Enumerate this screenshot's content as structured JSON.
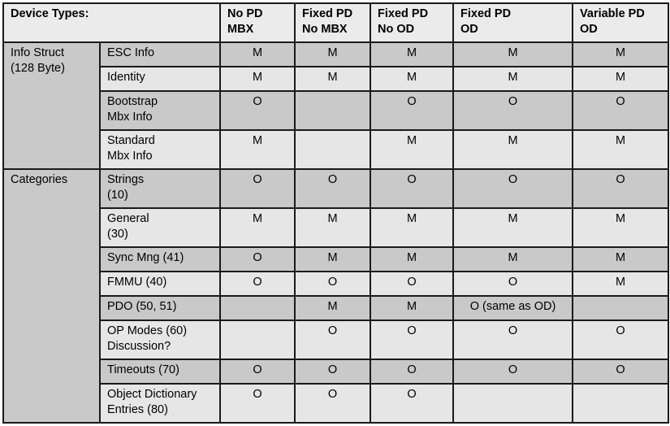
{
  "header": {
    "device_types": "Device Types:",
    "columns": [
      [
        "No PD",
        "MBX"
      ],
      [
        "Fixed PD",
        "No MBX"
      ],
      [
        "Fixed PD",
        "No OD"
      ],
      [
        "Fixed PD",
        "OD"
      ],
      [
        "Variable PD",
        "OD"
      ]
    ]
  },
  "groups": [
    {
      "label": [
        "Info Struct",
        "(128 Byte)"
      ]
    },
    {
      "label": [
        "Categories"
      ]
    }
  ],
  "rows": [
    {
      "name": [
        "ESC Info"
      ],
      "values": [
        "M",
        "M",
        "M",
        "M",
        "M"
      ]
    },
    {
      "name": [
        "Identity"
      ],
      "values": [
        "M",
        "M",
        "M",
        "M",
        "M"
      ]
    },
    {
      "name": [
        "Bootstrap",
        "Mbx Info"
      ],
      "values": [
        "O",
        "",
        "O",
        "O",
        "O"
      ]
    },
    {
      "name": [
        "Standard",
        "Mbx Info"
      ],
      "values": [
        "M",
        "",
        "M",
        "M",
        "M"
      ]
    },
    {
      "name": [
        "Strings",
        "(10)"
      ],
      "values": [
        "O",
        "O",
        "O",
        "O",
        "O"
      ]
    },
    {
      "name": [
        "General",
        "(30)"
      ],
      "values": [
        "M",
        "M",
        "M",
        "M",
        "M"
      ]
    },
    {
      "name": [
        "Sync Mng (41)"
      ],
      "values": [
        "O",
        "M",
        "M",
        "M",
        "M"
      ]
    },
    {
      "name": [
        "FMMU (40)"
      ],
      "values": [
        "O",
        "O",
        "O",
        "O",
        "M"
      ]
    },
    {
      "name": [
        "PDO (50, 51)"
      ],
      "values": [
        "",
        "M",
        "M",
        "O (same as OD)",
        ""
      ]
    },
    {
      "name": [
        "OP Modes (60)",
        "Discussion?"
      ],
      "values": [
        "",
        "O",
        "O",
        "O",
        "O"
      ]
    },
    {
      "name": [
        "Timeouts (70)"
      ],
      "values": [
        "O",
        "O",
        "O",
        "O",
        "O"
      ]
    },
    {
      "name": [
        "Object Dictionary",
        "Entries (80)"
      ],
      "values": [
        "O",
        "O",
        "O",
        "",
        ""
      ]
    }
  ]
}
